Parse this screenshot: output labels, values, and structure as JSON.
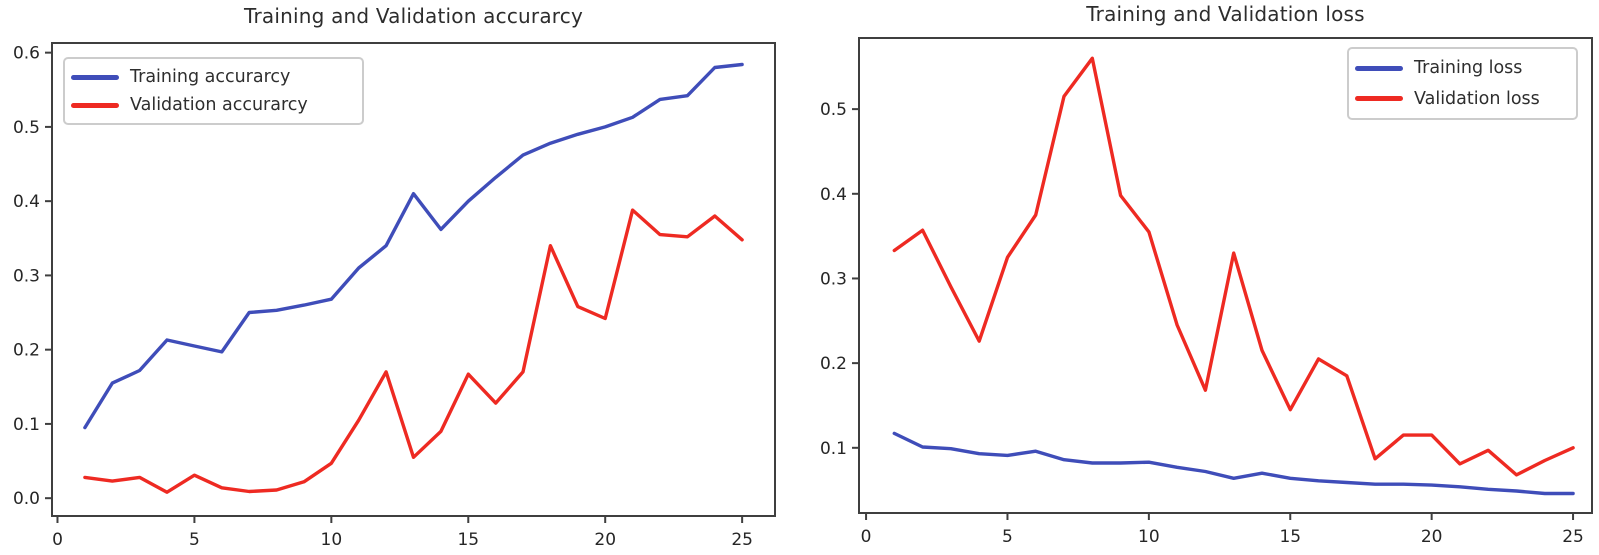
{
  "chart_data": {
    "charts": [
      {
        "type": "line",
        "title": "Training and Validation accurarcy",
        "x": [
          1,
          2,
          3,
          4,
          5,
          6,
          7,
          8,
          9,
          10,
          11,
          12,
          13,
          14,
          15,
          16,
          17,
          18,
          19,
          20,
          21,
          22,
          23,
          24,
          25
        ],
        "xlim": [
          -0.2,
          26.2
        ],
        "ylim": [
          -0.024,
          0.613
        ],
        "xticks": [
          0,
          5,
          10,
          15,
          20,
          25
        ],
        "xtick_labels": [
          "0",
          "5",
          "10",
          "15",
          "20",
          "25"
        ],
        "yticks": [
          0.0,
          0.1,
          0.2,
          0.3,
          0.4,
          0.5,
          0.6
        ],
        "ytick_labels": [
          "0.0",
          "0.1",
          "0.2",
          "0.3",
          "0.4",
          "0.5",
          "0.6"
        ],
        "grid": false,
        "legend_position": "upper left",
        "series": [
          {
            "name": "Training accurarcy",
            "color": "#3f4db9",
            "values": [
              0.095,
              0.155,
              0.172,
              0.213,
              0.205,
              0.197,
              0.25,
              0.253,
              0.26,
              0.268,
              0.31,
              0.34,
              0.41,
              0.362,
              0.4,
              0.432,
              0.462,
              0.478,
              0.49,
              0.5,
              0.513,
              0.537,
              0.542,
              0.58,
              0.584
            ]
          },
          {
            "name": "Validation accurarcy",
            "color": "#ee2a22",
            "values": [
              0.028,
              0.023,
              0.028,
              0.008,
              0.031,
              0.014,
              0.009,
              0.011,
              0.022,
              0.047,
              0.105,
              0.17,
              0.055,
              0.09,
              0.167,
              0.128,
              0.17,
              0.34,
              0.258,
              0.242,
              0.388,
              0.355,
              0.352,
              0.38,
              0.348
            ]
          }
        ]
      },
      {
        "type": "line",
        "title": "Training and Validation loss",
        "x": [
          1,
          2,
          3,
          4,
          5,
          6,
          7,
          8,
          9,
          10,
          11,
          12,
          13,
          14,
          15,
          16,
          17,
          18,
          19,
          20,
          21,
          22,
          23,
          24,
          25
        ],
        "xlim": [
          -0.25,
          25.67
        ],
        "ylim": [
          0.023,
          0.584
        ],
        "xticks": [
          0,
          5,
          10,
          15,
          20,
          25
        ],
        "xtick_labels": [
          "0",
          "5",
          "10",
          "15",
          "20",
          "25"
        ],
        "yticks": [
          0.1,
          0.2,
          0.3,
          0.4,
          0.5
        ],
        "ytick_labels": [
          "0.1",
          "0.2",
          "0.3",
          "0.4",
          "0.5"
        ],
        "grid": false,
        "legend_position": "upper right",
        "series": [
          {
            "name": "Training loss",
            "color": "#3f4db9",
            "values": [
              0.117,
              0.101,
              0.099,
              0.093,
              0.091,
              0.096,
              0.086,
              0.082,
              0.082,
              0.083,
              0.077,
              0.072,
              0.064,
              0.07,
              0.064,
              0.061,
              0.059,
              0.057,
              0.057,
              0.056,
              0.054,
              0.051,
              0.049,
              0.046,
              0.046
            ]
          },
          {
            "name": "Validation loss",
            "color": "#ee2a22",
            "values": [
              0.333,
              0.357,
              0.29,
              0.226,
              0.325,
              0.375,
              0.515,
              0.56,
              0.398,
              0.355,
              0.245,
              0.168,
              0.33,
              0.215,
              0.145,
              0.205,
              0.185,
              0.087,
              0.115,
              0.115,
              0.081,
              0.097,
              0.068,
              0.085,
              0.1
            ]
          }
        ]
      }
    ]
  },
  "styles": {
    "background": "#ffffff",
    "spine_color": "#3f3f3f",
    "tick_color": "#3f3f3f",
    "tick_text_color": "#262626",
    "title_color": "#2d2d2d",
    "legend_border_color": "#cccccc",
    "legend_bg": "#ffffff"
  }
}
